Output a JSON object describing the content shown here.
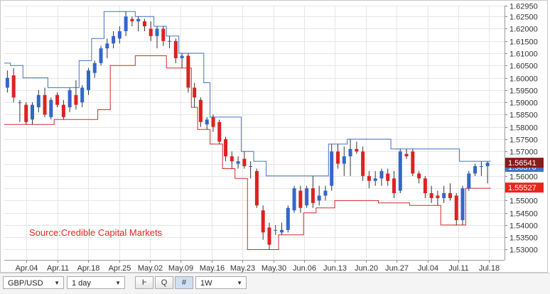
{
  "chart_data": {
    "type": "candlestick",
    "instrument": "GBP/USD",
    "timeframe": "1 day",
    "source": "Source:Credible Capital Markets",
    "ylim": [
      1.5258,
      1.6294
    ],
    "y_ticks": [
      "1.62950",
      "1.62500",
      "1.62000",
      "1.61500",
      "1.61000",
      "1.60500",
      "1.60000",
      "1.59500",
      "1.59000",
      "1.58500",
      "1.58000",
      "1.57500",
      "1.57000",
      "1.56500",
      "1.56000",
      "1.55500",
      "1.55000",
      "1.54500",
      "1.54000",
      "1.53500",
      "1.53000"
    ],
    "x_ticks": [
      {
        "label": "Apr.04",
        "index": 6
      },
      {
        "label": "Apr.11",
        "index": 15
      },
      {
        "label": "Apr.18",
        "index": 24
      },
      {
        "label": "Apr.25",
        "index": 33
      },
      {
        "label": "May.02",
        "index": 42
      },
      {
        "label": "May.09",
        "index": 51
      },
      {
        "label": "May.16",
        "index": 60
      },
      {
        "label": "May.23",
        "index": 69
      },
      {
        "label": "May.30",
        "index": 78
      },
      {
        "label": "Jun.06",
        "index": 87
      },
      {
        "label": "Jun.13",
        "index": 96
      },
      {
        "label": "Jun.20",
        "index": 105
      },
      {
        "label": "Jun.27",
        "index": 114
      },
      {
        "label": "Jul.04",
        "index": 123
      },
      {
        "label": "Jul.11",
        "index": 132
      },
      {
        "label": "Jul.18",
        "index": 141
      }
    ],
    "candles": [
      {
        "o": 1.596,
        "h": 1.603,
        "l": 1.594,
        "c": 1.6
      },
      {
        "o": 1.601,
        "h": 1.604,
        "l": 1.59,
        "c": 1.592
      },
      {
        "o": 1.59,
        "h": 1.591,
        "l": 1.582,
        "c": 1.59
      },
      {
        "o": 1.589,
        "h": 1.59,
        "l": 1.581,
        "c": 1.582
      },
      {
        "o": 1.583,
        "h": 1.59,
        "l": 1.581,
        "c": 1.589
      },
      {
        "o": 1.588,
        "h": 1.595,
        "l": 1.586,
        "c": 1.593
      },
      {
        "o": 1.593,
        "h": 1.596,
        "l": 1.584,
        "c": 1.585
      },
      {
        "o": 1.584,
        "h": 1.592,
        "l": 1.583,
        "c": 1.591
      },
      {
        "o": 1.593,
        "h": 1.594,
        "l": 1.588,
        "c": 1.589
      },
      {
        "o": 1.589,
        "h": 1.591,
        "l": 1.583,
        "c": 1.584
      },
      {
        "o": 1.588,
        "h": 1.596,
        "l": 1.586,
        "c": 1.595
      },
      {
        "o": 1.593,
        "h": 1.599,
        "l": 1.587,
        "c": 1.589
      },
      {
        "o": 1.59,
        "h": 1.597,
        "l": 1.588,
        "c": 1.596
      },
      {
        "o": 1.595,
        "h": 1.604,
        "l": 1.593,
        "c": 1.603
      },
      {
        "o": 1.602,
        "h": 1.607,
        "l": 1.6,
        "c": 1.606
      },
      {
        "o": 1.606,
        "h": 1.613,
        "l": 1.605,
        "c": 1.612
      },
      {
        "o": 1.612,
        "h": 1.616,
        "l": 1.608,
        "c": 1.614
      },
      {
        "o": 1.614,
        "h": 1.619,
        "l": 1.612,
        "c": 1.617
      },
      {
        "o": 1.616,
        "h": 1.621,
        "l": 1.614,
        "c": 1.619
      },
      {
        "o": 1.619,
        "h": 1.627,
        "l": 1.617,
        "c": 1.625
      },
      {
        "o": 1.624,
        "h": 1.625,
        "l": 1.621,
        "c": 1.623
      },
      {
        "o": 1.623,
        "h": 1.625,
        "l": 1.619,
        "c": 1.624
      },
      {
        "o": 1.623,
        "h": 1.624,
        "l": 1.619,
        "c": 1.621
      },
      {
        "o": 1.62,
        "h": 1.623,
        "l": 1.615,
        "c": 1.617
      },
      {
        "o": 1.617,
        "h": 1.621,
        "l": 1.612,
        "c": 1.62
      },
      {
        "o": 1.62,
        "h": 1.621,
        "l": 1.613,
        "c": 1.615
      },
      {
        "o": 1.615,
        "h": 1.617,
        "l": 1.612,
        "c": 1.615
      },
      {
        "o": 1.615,
        "h": 1.616,
        "l": 1.606,
        "c": 1.608
      },
      {
        "o": 1.608,
        "h": 1.61,
        "l": 1.604,
        "c": 1.609
      },
      {
        "o": 1.609,
        "h": 1.61,
        "l": 1.594,
        "c": 1.596
      },
      {
        "o": 1.596,
        "h": 1.598,
        "l": 1.588,
        "c": 1.592
      },
      {
        "o": 1.591,
        "h": 1.592,
        "l": 1.58,
        "c": 1.582
      },
      {
        "o": 1.581,
        "h": 1.584,
        "l": 1.579,
        "c": 1.583
      },
      {
        "o": 1.584,
        "h": 1.585,
        "l": 1.578,
        "c": 1.58
      },
      {
        "o": 1.582,
        "h": 1.583,
        "l": 1.573,
        "c": 1.574
      },
      {
        "o": 1.575,
        "h": 1.576,
        "l": 1.566,
        "c": 1.568
      },
      {
        "o": 1.568,
        "h": 1.57,
        "l": 1.563,
        "c": 1.566
      },
      {
        "o": 1.565,
        "h": 1.568,
        "l": 1.563,
        "c": 1.566
      },
      {
        "o": 1.567,
        "h": 1.57,
        "l": 1.563,
        "c": 1.564
      },
      {
        "o": 1.564,
        "h": 1.566,
        "l": 1.559,
        "c": 1.564
      },
      {
        "o": 1.562,
        "h": 1.563,
        "l": 1.547,
        "c": 1.548
      },
      {
        "o": 1.546,
        "h": 1.548,
        "l": 1.534,
        "c": 1.537
      },
      {
        "o": 1.539,
        "h": 1.541,
        "l": 1.53,
        "c": 1.532
      },
      {
        "o": 1.538,
        "h": 1.54,
        "l": 1.536,
        "c": 1.538
      },
      {
        "o": 1.537,
        "h": 1.541,
        "l": 1.536,
        "c": 1.538
      },
      {
        "o": 1.538,
        "h": 1.548,
        "l": 1.537,
        "c": 1.547
      },
      {
        "o": 1.546,
        "h": 1.556,
        "l": 1.545,
        "c": 1.555
      },
      {
        "o": 1.554,
        "h": 1.556,
        "l": 1.545,
        "c": 1.547
      },
      {
        "o": 1.548,
        "h": 1.556,
        "l": 1.547,
        "c": 1.555
      },
      {
        "o": 1.555,
        "h": 1.56,
        "l": 1.547,
        "c": 1.549
      },
      {
        "o": 1.55,
        "h": 1.556,
        "l": 1.548,
        "c": 1.552
      },
      {
        "o": 1.552,
        "h": 1.556,
        "l": 1.55,
        "c": 1.554
      },
      {
        "o": 1.556,
        "h": 1.573,
        "l": 1.554,
        "c": 1.57
      },
      {
        "o": 1.57,
        "h": 1.573,
        "l": 1.563,
        "c": 1.565
      },
      {
        "o": 1.565,
        "h": 1.572,
        "l": 1.56,
        "c": 1.568
      },
      {
        "o": 1.568,
        "h": 1.575,
        "l": 1.56,
        "c": 1.571
      },
      {
        "o": 1.571,
        "h": 1.574,
        "l": 1.569,
        "c": 1.57
      },
      {
        "o": 1.57,
        "h": 1.572,
        "l": 1.558,
        "c": 1.56
      },
      {
        "o": 1.56,
        "h": 1.562,
        "l": 1.555,
        "c": 1.558
      },
      {
        "o": 1.558,
        "h": 1.562,
        "l": 1.556,
        "c": 1.559
      },
      {
        "o": 1.559,
        "h": 1.563,
        "l": 1.556,
        "c": 1.562
      },
      {
        "o": 1.561,
        "h": 1.563,
        "l": 1.556,
        "c": 1.558
      },
      {
        "o": 1.559,
        "h": 1.562,
        "l": 1.551,
        "c": 1.553
      },
      {
        "o": 1.554,
        "h": 1.571,
        "l": 1.553,
        "c": 1.57
      },
      {
        "o": 1.569,
        "h": 1.571,
        "l": 1.567,
        "c": 1.568
      },
      {
        "o": 1.57,
        "h": 1.571,
        "l": 1.56,
        "c": 1.561
      },
      {
        "o": 1.561,
        "h": 1.562,
        "l": 1.557,
        "c": 1.559
      },
      {
        "o": 1.559,
        "h": 1.56,
        "l": 1.551,
        "c": 1.553
      },
      {
        "o": 1.553,
        "h": 1.556,
        "l": 1.549,
        "c": 1.551
      },
      {
        "o": 1.552,
        "h": 1.554,
        "l": 1.548,
        "c": 1.551
      },
      {
        "o": 1.551,
        "h": 1.556,
        "l": 1.549,
        "c": 1.553
      },
      {
        "o": 1.553,
        "h": 1.557,
        "l": 1.55,
        "c": 1.551
      },
      {
        "o": 1.552,
        "h": 1.553,
        "l": 1.54,
        "c": 1.542
      },
      {
        "o": 1.542,
        "h": 1.556,
        "l": 1.54,
        "c": 1.555
      },
      {
        "o": 1.555,
        "h": 1.562,
        "l": 1.554,
        "c": 1.561
      },
      {
        "o": 1.561,
        "h": 1.565,
        "l": 1.56,
        "c": 1.564
      },
      {
        "o": 1.564,
        "h": 1.566,
        "l": 1.56,
        "c": 1.564
      },
      {
        "o": 1.564,
        "h": 1.566,
        "l": 1.557,
        "c": 1.5654
      }
    ],
    "channel_upper": [
      1.606,
      1.605,
      1.605,
      1.6,
      1.6,
      1.6,
      1.6,
      1.596,
      1.596,
      1.596,
      1.596,
      1.596,
      1.607,
      1.607,
      1.616,
      1.616,
      1.627,
      1.627,
      1.627,
      1.627,
      1.627,
      1.625,
      1.625,
      1.625,
      1.621,
      1.621,
      1.617,
      1.617,
      1.61,
      1.61,
      1.61,
      1.61,
      1.598,
      1.584,
      1.584,
      1.584,
      1.584,
      1.584,
      1.57,
      1.57,
      1.566,
      1.566,
      1.56,
      1.56,
      1.56,
      1.56,
      1.56,
      1.56,
      1.56,
      1.56,
      1.56,
      1.56,
      1.573,
      1.573,
      1.573,
      1.575,
      1.575,
      1.575,
      1.575,
      1.575,
      1.575,
      1.575,
      1.571,
      1.571,
      1.571,
      1.571,
      1.571,
      1.571,
      1.571,
      1.571,
      1.571,
      1.571,
      1.571,
      1.566,
      1.566,
      1.566,
      1.566,
      1.566
    ],
    "channel_lower": [
      1.581,
      1.581,
      1.581,
      1.581,
      1.581,
      1.581,
      1.581,
      1.581,
      1.583,
      1.583,
      1.583,
      1.583,
      1.583,
      1.583,
      1.583,
      1.587,
      1.587,
      1.605,
      1.605,
      1.605,
      1.605,
      1.609,
      1.609,
      1.609,
      1.609,
      1.609,
      1.604,
      1.604,
      1.604,
      1.604,
      1.588,
      1.579,
      1.579,
      1.573,
      1.573,
      1.563,
      1.563,
      1.559,
      1.559,
      1.53,
      1.53,
      1.53,
      1.53,
      1.53,
      1.536,
      1.536,
      1.536,
      1.536,
      1.545,
      1.545,
      1.547,
      1.547,
      1.547,
      1.55,
      1.55,
      1.55,
      1.55,
      1.55,
      1.55,
      1.55,
      1.549,
      1.549,
      1.549,
      1.549,
      1.549,
      1.548,
      1.548,
      1.548,
      1.548,
      1.548,
      1.54,
      1.54,
      1.54,
      1.54,
      1.555,
      1.555,
      1.555,
      1.555
    ],
    "markers": [
      {
        "value": "1.56370",
        "color": "#4472c4"
      },
      {
        "value": "1.56541",
        "color": "#8b1a1a"
      },
      {
        "value": "1.55527",
        "color": "#e8261c"
      }
    ]
  },
  "toolbar": {
    "symbol": "GBP/USD",
    "period": "1 day",
    "interval": "1W",
    "buttons": [
      "Ⱶ",
      "Q",
      "#"
    ]
  },
  "colors": {
    "bull": "#3366cc",
    "bear": "#dd2222",
    "upper": "#4472c4",
    "lower": "#d42a2a",
    "grid": "#e6e6e6"
  }
}
